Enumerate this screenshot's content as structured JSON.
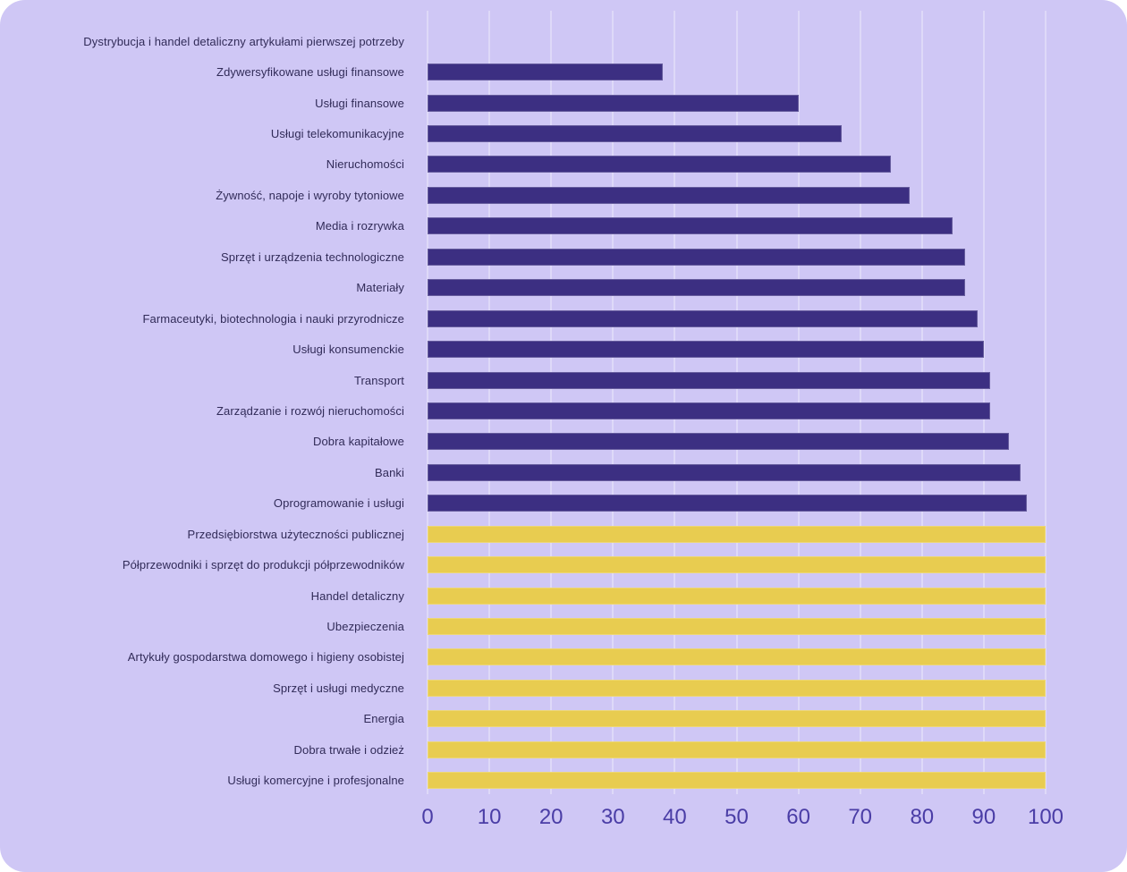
{
  "palette": {
    "card_background": "#cfc7f5",
    "gridline": "#ded9f8",
    "bar_dark": "#3c2f82",
    "bar_yellow": "#e8cc50",
    "category_text": "#312b58",
    "tick_text": "#4a3da6"
  },
  "chart_data": {
    "type": "bar",
    "orientation": "horizontal",
    "title": "",
    "xlabel": "",
    "ylabel": "",
    "xlim": [
      0,
      100
    ],
    "x_ticks": [
      0,
      10,
      20,
      30,
      40,
      50,
      60,
      70,
      80,
      90,
      100
    ],
    "grid": true,
    "legend": false,
    "categories": [
      "Dystrybucja i handel detaliczny artykułami pierwszej potrzeby",
      "Zdywersyfikowane usługi finansowe",
      "Usługi finansowe",
      "Usługi telekomunikacyjne",
      "Nieruchomości",
      "Żywność, napoje i wyroby tytoniowe",
      "Media i rozrywka",
      "Sprzęt i urządzenia technologiczne",
      "Materiały",
      "Farmaceutyki, biotechnologia i nauki przyrodnicze",
      "Usługi konsumenckie",
      "Transport",
      "Zarządzanie i rozwój nieruchomości",
      "Dobra kapitałowe",
      "Banki",
      "Oprogramowanie i usługi",
      "Przedsiębiorstwa użyteczności publicznej",
      "Półprzewodniki i sprzęt do produkcji półprzewodników",
      "Handel detaliczny",
      "Ubezpieczenia",
      "Artykuły gospodarstwa domowego i higieny osobistej",
      "Sprzęt i usługi medyczne",
      "Energia",
      "Dobra trwałe i odzież",
      "Usługi komercyjne i profesjonalne"
    ],
    "values": [
      0,
      38,
      60,
      67,
      75,
      78,
      85,
      87,
      87,
      89,
      90,
      91,
      91,
      94,
      96,
      97,
      100,
      100,
      100,
      100,
      100,
      100,
      100,
      100,
      100
    ],
    "bar_color_keys": [
      "bar_dark",
      "bar_dark",
      "bar_dark",
      "bar_dark",
      "bar_dark",
      "bar_dark",
      "bar_dark",
      "bar_dark",
      "bar_dark",
      "bar_dark",
      "bar_dark",
      "bar_dark",
      "bar_dark",
      "bar_dark",
      "bar_dark",
      "bar_dark",
      "bar_yellow",
      "bar_yellow",
      "bar_yellow",
      "bar_yellow",
      "bar_yellow",
      "bar_yellow",
      "bar_yellow",
      "bar_yellow",
      "bar_yellow"
    ]
  }
}
